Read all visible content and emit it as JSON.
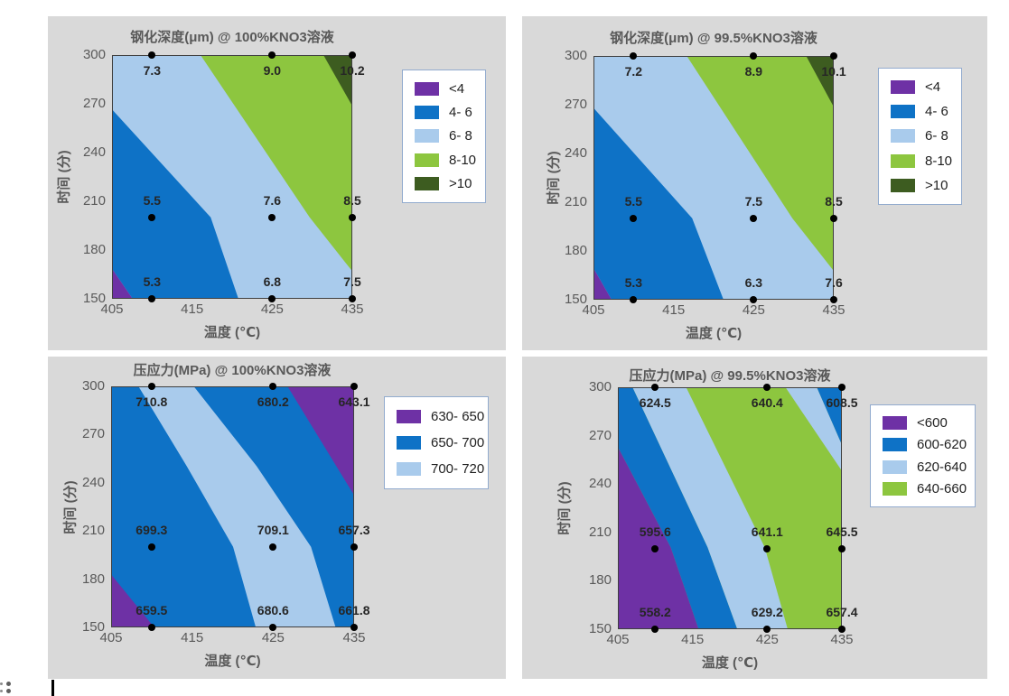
{
  "colors": {
    "page_bg": "#ffffff",
    "panel_bg": "#d9d9d9",
    "purple": "#6e31a5",
    "blue": "#0e72c6",
    "light_blue": "#a9cbec",
    "green": "#8dc63f",
    "dark_green": "#3d5c20",
    "axis_text": "#595959",
    "value_text": "#262626",
    "legend_border": "#92abce",
    "plot_border": "#3f3f3f",
    "dot": "#000000"
  },
  "chart_data": [
    {
      "type": "heatmap",
      "subtype": "filled-contour",
      "title": "钢化深度(μm) @ 100%KNO3溶液",
      "x_axis": "温度 (℃)",
      "y_axis": "时间 (分)",
      "x_range": [
        405,
        435
      ],
      "y_range": [
        150,
        300
      ],
      "x_ticks": [
        "405",
        "415",
        "425",
        "435"
      ],
      "y_ticks": [
        "300",
        "270",
        "240",
        "210",
        "180",
        "150"
      ],
      "legend_position": "right",
      "legend": [
        {
          "label": "<4",
          "color": "purple"
        },
        {
          "label": "4- 6",
          "color": "blue"
        },
        {
          "label": "6- 8",
          "color": "light_blue"
        },
        {
          "label": "8-10",
          "color": "green"
        },
        {
          "label": ">10",
          "color": "dark_green"
        }
      ],
      "points": [
        {
          "T": 410,
          "t": 300,
          "value": "7.3"
        },
        {
          "T": 425,
          "t": 300,
          "value": "9.0"
        },
        {
          "T": 435,
          "t": 300,
          "value": "10.2"
        },
        {
          "T": 410,
          "t": 200,
          "value": "5.5"
        },
        {
          "T": 425,
          "t": 200,
          "value": "7.6"
        },
        {
          "T": 435,
          "t": 200,
          "value": "8.5"
        },
        {
          "T": 410,
          "t": 150,
          "value": "5.3"
        },
        {
          "T": 425,
          "t": 150,
          "value": "6.8"
        },
        {
          "T": 435,
          "t": 150,
          "value": "7.5"
        }
      ]
    },
    {
      "type": "heatmap",
      "subtype": "filled-contour",
      "title": "钢化深度(μm) @ 99.5%KNO3溶液",
      "x_axis": "温度 (℃)",
      "y_axis": "时间 (分)",
      "x_range": [
        405,
        435
      ],
      "y_range": [
        150,
        300
      ],
      "x_ticks": [
        "405",
        "415",
        "425",
        "435"
      ],
      "y_ticks": [
        "300",
        "270",
        "240",
        "210",
        "180",
        "150"
      ],
      "legend_position": "right",
      "legend": [
        {
          "label": "<4",
          "color": "purple"
        },
        {
          "label": "4- 6",
          "color": "blue"
        },
        {
          "label": "6- 8",
          "color": "light_blue"
        },
        {
          "label": "8-10",
          "color": "green"
        },
        {
          "label": ">10",
          "color": "dark_green"
        }
      ],
      "points": [
        {
          "T": 410,
          "t": 300,
          "value": "7.2"
        },
        {
          "T": 425,
          "t": 300,
          "value": "8.9"
        },
        {
          "T": 435,
          "t": 300,
          "value": "10.1"
        },
        {
          "T": 410,
          "t": 200,
          "value": "5.5"
        },
        {
          "T": 425,
          "t": 200,
          "value": "7.5"
        },
        {
          "T": 435,
          "t": 200,
          "value": "8.5"
        },
        {
          "T": 410,
          "t": 150,
          "value": "5.3"
        },
        {
          "T": 425,
          "t": 150,
          "value": "6.3"
        },
        {
          "T": 435,
          "t": 150,
          "value": "7.6"
        }
      ]
    },
    {
      "type": "heatmap",
      "subtype": "filled-contour",
      "title": "压应力(MPa) @ 100%KNO3溶液",
      "x_axis": "温度 (℃)",
      "y_axis": "时间 (分)",
      "x_range": [
        405,
        435
      ],
      "y_range": [
        150,
        300
      ],
      "x_ticks": [
        "405",
        "415",
        "425",
        "435"
      ],
      "y_ticks": [
        "300",
        "270",
        "240",
        "210",
        "180",
        "150"
      ],
      "legend_position": "right",
      "legend": [
        {
          "label": "630- 650",
          "color": "purple"
        },
        {
          "label": "650- 700",
          "color": "blue"
        },
        {
          "label": "700- 720",
          "color": "light_blue"
        }
      ],
      "points": [
        {
          "T": 410,
          "t": 300,
          "value": "710.8"
        },
        {
          "T": 425,
          "t": 300,
          "value": "680.2"
        },
        {
          "T": 435,
          "t": 300,
          "value": "643.1"
        },
        {
          "T": 410,
          "t": 200,
          "value": "699.3"
        },
        {
          "T": 425,
          "t": 200,
          "value": "709.1"
        },
        {
          "T": 435,
          "t": 200,
          "value": "657.3"
        },
        {
          "T": 410,
          "t": 150,
          "value": "659.5"
        },
        {
          "T": 425,
          "t": 150,
          "value": "680.6"
        },
        {
          "T": 435,
          "t": 150,
          "value": "661.8"
        }
      ]
    },
    {
      "type": "heatmap",
      "subtype": "filled-contour",
      "title": "压应力(MPa) @ 99.5%KNO3溶液",
      "x_axis": "温度 (℃)",
      "y_axis": "时间 (分)",
      "x_range": [
        405,
        435
      ],
      "y_range": [
        150,
        300
      ],
      "x_ticks": [
        "405",
        "415",
        "425",
        "435"
      ],
      "y_ticks": [
        "300",
        "270",
        "240",
        "210",
        "180",
        "150"
      ],
      "legend_position": "right",
      "legend": [
        {
          "label": "<600",
          "color": "purple"
        },
        {
          "label": "600-620",
          "color": "blue"
        },
        {
          "label": "620-640",
          "color": "light_blue"
        },
        {
          "label": "640-660",
          "color": "green"
        }
      ],
      "points": [
        {
          "T": 410,
          "t": 300,
          "value": "624.5"
        },
        {
          "T": 425,
          "t": 300,
          "value": "640.4"
        },
        {
          "T": 435,
          "t": 300,
          "value": "608.5"
        },
        {
          "T": 410,
          "t": 200,
          "value": "595.6"
        },
        {
          "T": 425,
          "t": 200,
          "value": "641.1"
        },
        {
          "T": 435,
          "t": 200,
          "value": "645.5"
        },
        {
          "T": 410,
          "t": 150,
          "value": "558.2"
        },
        {
          "T": 425,
          "t": 150,
          "value": "629.2"
        },
        {
          "T": 435,
          "t": 150,
          "value": "657.4"
        }
      ]
    }
  ]
}
